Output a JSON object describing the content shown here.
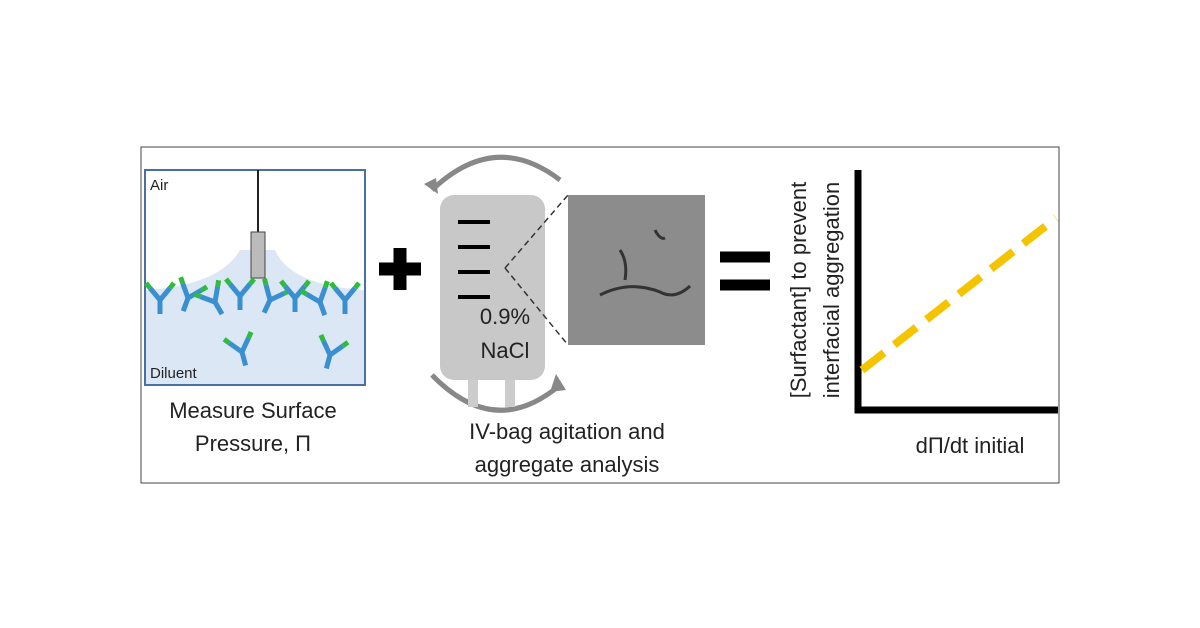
{
  "left_panel": {
    "top_label": "Air",
    "bottom_label": "Diluent",
    "caption": [
      "Measure Surface",
      "Pressure, Π"
    ]
  },
  "middle_panel": {
    "bag_label": [
      "0.9%",
      "NaCl"
    ],
    "caption": [
      "IV-bag agitation and",
      "aggregate analysis"
    ]
  },
  "right_panel": {
    "y_label": [
      "[Surfactant] to prevent",
      "interfacial aggregation"
    ],
    "x_label": "dΠ/dt initial"
  }
}
